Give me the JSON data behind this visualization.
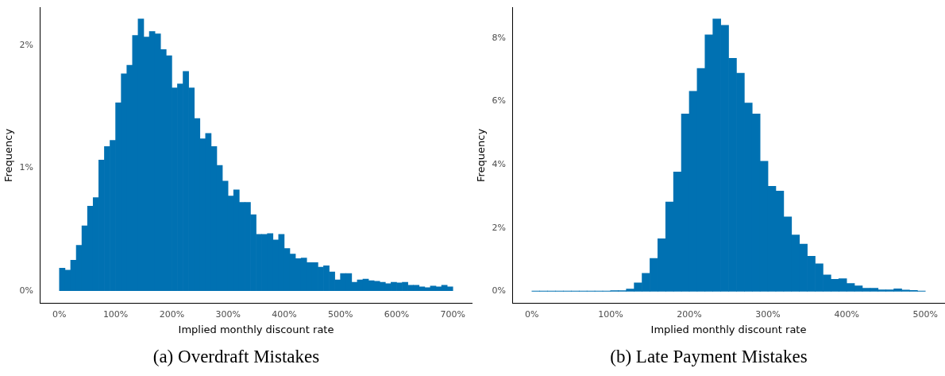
{
  "chart_data": [
    {
      "type": "histogram",
      "xlabel": "Implied monthly discount rate",
      "ylabel": "Frequency",
      "color": "#0071b2",
      "bins": [
        0,
        10,
        20,
        30,
        40,
        50,
        60,
        70,
        80,
        90,
        100,
        110,
        120,
        130,
        140,
        150,
        160,
        170,
        180,
        190,
        200,
        210,
        220,
        230,
        240,
        250,
        260,
        270,
        280,
        290,
        300,
        310,
        320,
        330,
        340,
        350,
        360,
        370,
        380,
        390,
        400,
        410,
        420,
        430,
        440,
        450,
        460,
        470,
        480,
        490,
        500,
        510,
        520,
        530,
        540,
        550,
        560,
        570,
        580,
        590,
        600,
        610,
        620,
        630,
        640,
        650,
        660,
        670,
        680,
        690,
        700
      ],
      "values": [
        0.185,
        0.168,
        0.249,
        0.371,
        0.53,
        0.69,
        0.76,
        1.067,
        1.176,
        1.227,
        1.534,
        1.77,
        1.84,
        2.083,
        2.217,
        2.07,
        2.115,
        2.096,
        1.968,
        1.917,
        1.655,
        1.687,
        1.789,
        1.655,
        1.406,
        1.24,
        1.284,
        1.176,
        1.022,
        0.895,
        0.773,
        0.824,
        0.722,
        0.722,
        0.62,
        0.46,
        0.46,
        0.466,
        0.415,
        0.46,
        0.345,
        0.3,
        0.262,
        0.268,
        0.23,
        0.23,
        0.192,
        0.204,
        0.153,
        0.089,
        0.141,
        0.141,
        0.07,
        0.089,
        0.096,
        0.083,
        0.077,
        0.07,
        0.058,
        0.07,
        0.064,
        0.07,
        0.045,
        0.045,
        0.032,
        0.026,
        0.038,
        0.032,
        0.045,
        0.032
      ],
      "xlim": [
        -35,
        735
      ],
      "xticks": [
        {
          "value": 0,
          "label": "0%"
        },
        {
          "value": 100,
          "label": "100%"
        },
        {
          "value": 200,
          "label": "200%"
        },
        {
          "value": 300,
          "label": "300%"
        },
        {
          "value": 400,
          "label": "400%"
        },
        {
          "value": 500,
          "label": "500%"
        },
        {
          "value": 600,
          "label": "600%"
        },
        {
          "value": 700,
          "label": "700%"
        }
      ],
      "ylim": [
        -0.1,
        2.31
      ],
      "yticks": [
        {
          "value": 0,
          "label": "0%"
        },
        {
          "value": 1,
          "label": "1%"
        },
        {
          "value": 2,
          "label": "2%"
        }
      ],
      "annotations": [
        "(a) Overdraft Mistakes"
      ]
    },
    {
      "type": "histogram",
      "xlabel": "Implied monthly discount rate",
      "ylabel": "Frequency",
      "color": "#0071b2",
      "bins": [
        0,
        10,
        20,
        30,
        40,
        50,
        60,
        70,
        80,
        90,
        100,
        110,
        120,
        130,
        140,
        150,
        160,
        170,
        180,
        190,
        200,
        210,
        220,
        230,
        240,
        250,
        260,
        270,
        280,
        290,
        300,
        310,
        320,
        330,
        340,
        350,
        360,
        370,
        380,
        390,
        400,
        410,
        420,
        430,
        440,
        450,
        460,
        470,
        480,
        490,
        500
      ],
      "values": [
        0.01,
        0.01,
        0.01,
        0.01,
        0.01,
        0.01,
        0.01,
        0.01,
        0.01,
        0.01,
        0.025,
        0.025,
        0.074,
        0.27,
        0.57,
        1.04,
        1.66,
        2.82,
        3.77,
        5.6,
        6.32,
        7.04,
        8.1,
        8.6,
        8.4,
        7.36,
        6.89,
        5.95,
        5.6,
        4.11,
        3.32,
        3.17,
        2.35,
        1.78,
        1.49,
        1.11,
        0.87,
        0.52,
        0.38,
        0.4,
        0.25,
        0.17,
        0.1,
        0.1,
        0.05,
        0.05,
        0.08,
        0.04,
        0.03,
        0.01
      ],
      "xlim": [
        -25,
        525
      ],
      "xticks": [
        {
          "value": 0,
          "label": "0%"
        },
        {
          "value": 100,
          "label": "100%"
        },
        {
          "value": 200,
          "label": "200%"
        },
        {
          "value": 300,
          "label": "300%"
        },
        {
          "value": 400,
          "label": "400%"
        },
        {
          "value": 500,
          "label": "500%"
        }
      ],
      "ylim": [
        -0.37,
        8.96
      ],
      "yticks": [
        {
          "value": 0,
          "label": "0%"
        },
        {
          "value": 2,
          "label": "2%"
        },
        {
          "value": 4,
          "label": "4%"
        },
        {
          "value": 6,
          "label": "6%"
        },
        {
          "value": 8,
          "label": "8%"
        }
      ],
      "annotations": [
        "(b) Late Payment Mistakes"
      ]
    }
  ]
}
